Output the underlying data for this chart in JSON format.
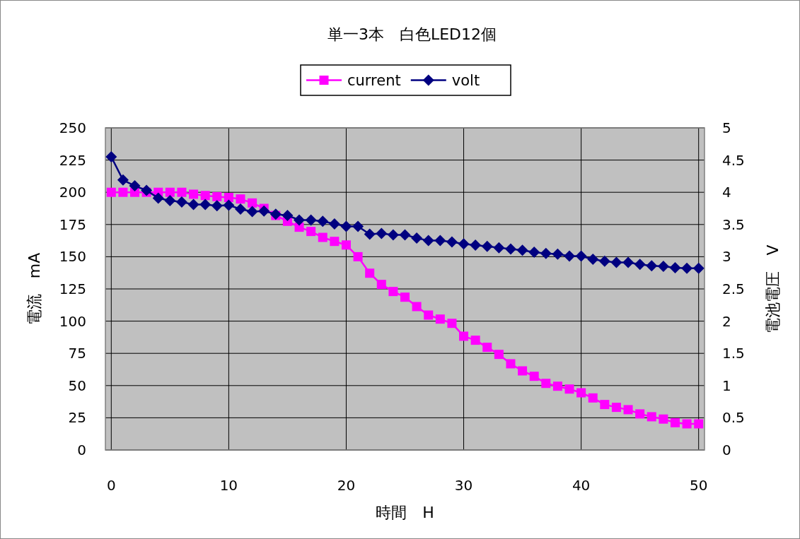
{
  "chart_data": {
    "type": "line",
    "title": "単一3本　白色LED12個",
    "xlabel": "時間　H",
    "ylabel": "電流　mA",
    "y2label": "電池電圧　V",
    "x": [
      0,
      1,
      2,
      3,
      4,
      5,
      6,
      7,
      8,
      9,
      10,
      11,
      12,
      13,
      14,
      15,
      16,
      17,
      18,
      19,
      20,
      21,
      22,
      23,
      24,
      25,
      26,
      27,
      28,
      29,
      30,
      31,
      32,
      33,
      34,
      35,
      36,
      37,
      38,
      39,
      40,
      41,
      42,
      43,
      44,
      45,
      46,
      47,
      48,
      49,
      50
    ],
    "xlim": [
      -0.5,
      50.5
    ],
    "xticks": [
      0,
      10,
      20,
      30,
      40,
      50
    ],
    "ylim": [
      0,
      250
    ],
    "yticks": [
      0,
      25,
      50,
      75,
      100,
      125,
      150,
      175,
      200,
      225,
      250
    ],
    "y2lim": [
      0,
      5
    ],
    "y2ticks": [
      0,
      0.5,
      1,
      1.5,
      2,
      2.5,
      3,
      3.5,
      4,
      4.5,
      5
    ],
    "grid": true,
    "legend": "top",
    "series": [
      {
        "name": "current",
        "color": "#ff00ff",
        "marker": "square",
        "values": [
          200,
          200,
          200,
          200,
          200,
          200,
          200,
          198.5,
          197.5,
          196.6,
          196,
          194.8,
          191.7,
          187.5,
          182,
          177.5,
          172.9,
          169.6,
          165,
          161.9,
          159.1,
          150,
          137.2,
          128.5,
          123,
          118.6,
          111.3,
          104.7,
          101.6,
          98.3,
          88.3,
          85.2,
          79.7,
          74.2,
          66.9,
          61.4,
          57.2,
          51.7,
          49.5,
          47.3,
          44.4,
          40.4,
          35.3,
          33.1,
          31.3,
          28,
          25.8,
          24,
          21.2,
          20.3,
          20.3
        ]
      },
      {
        "name": "volt",
        "color": "#000080",
        "marker": "diamond",
        "axis": "y2",
        "values": [
          4.55,
          4.19,
          4.1,
          4.03,
          3.91,
          3.87,
          3.85,
          3.81,
          3.81,
          3.79,
          3.8,
          3.74,
          3.7,
          3.71,
          3.66,
          3.64,
          3.57,
          3.57,
          3.55,
          3.51,
          3.47,
          3.47,
          3.35,
          3.36,
          3.34,
          3.34,
          3.29,
          3.25,
          3.25,
          3.23,
          3.2,
          3.18,
          3.16,
          3.14,
          3.12,
          3.1,
          3.07,
          3.05,
          3.04,
          3.01,
          3.01,
          2.96,
          2.93,
          2.91,
          2.91,
          2.88,
          2.86,
          2.85,
          2.83,
          2.82,
          2.82
        ]
      }
    ]
  }
}
